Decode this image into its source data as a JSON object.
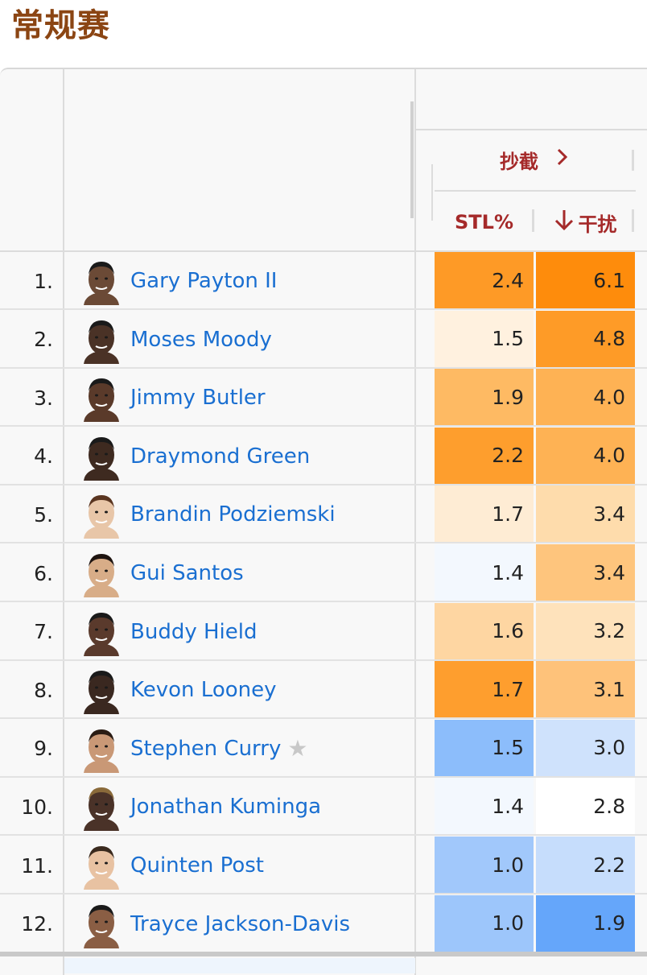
{
  "section_title": "常规赛",
  "header": {
    "group_label": "抄截",
    "group_chevron": "›",
    "col_stl": "STL%",
    "col_int_arrow": "↓",
    "col_int": "干扰"
  },
  "rows": [
    {
      "rank": "1.",
      "name": "Gary Payton II",
      "stl": "2.4",
      "stl_color": "#fe9a26",
      "int": "6.1",
      "int_color": "#fe8c0c",
      "star": ""
    },
    {
      "rank": "2.",
      "name": "Moses Moody",
      "stl": "1.5",
      "stl_color": "#fff1df",
      "int": "4.8",
      "int_color": "#fe9b27",
      "star": ""
    },
    {
      "rank": "3.",
      "name": "Jimmy Butler",
      "stl": "1.9",
      "stl_color": "#feba63",
      "int": "4.0",
      "int_color": "#feb254",
      "star": ""
    },
    {
      "rank": "4.",
      "name": "Draymond Green",
      "stl": "2.2",
      "stl_color": "#fe9e2d",
      "int": "4.0",
      "int_color": "#feb254",
      "star": ""
    },
    {
      "rank": "5.",
      "name": "Brandin Podziemski",
      "stl": "1.7",
      "stl_color": "#feecd4",
      "int": "3.4",
      "int_color": "#fedcac",
      "star": ""
    },
    {
      "rank": "6.",
      "name": "Gui Santos",
      "stl": "1.4",
      "stl_color": "#f3f8fe",
      "int": "3.4",
      "int_color": "#fec57d",
      "star": ""
    },
    {
      "rank": "7.",
      "name": "Buddy Hield",
      "stl": "1.6",
      "stl_color": "#fed6a2",
      "int": "3.2",
      "int_color": "#fee2bb",
      "star": ""
    },
    {
      "rank": "8.",
      "name": "Kevon Looney",
      "stl": "1.7",
      "stl_color": "#fe9e2e",
      "int": "3.1",
      "int_color": "#fec27a",
      "star": ""
    },
    {
      "rank": "9.",
      "name": "Stephen Curry",
      "stl": "1.5",
      "stl_color": "#8cbdfb",
      "int": "3.0",
      "int_color": "#cfe2fc",
      "star": "★"
    },
    {
      "rank": "10.",
      "name": "Jonathan Kuminga",
      "stl": "1.4",
      "stl_color": "#f3f8fe",
      "int": "2.8",
      "int_color": "#ffffff",
      "star": ""
    },
    {
      "rank": "11.",
      "name": "Quinten Post",
      "stl": "1.0",
      "stl_color": "#a1c8fb",
      "int": "2.2",
      "int_color": "#c6ddfc",
      "star": ""
    },
    {
      "rank": "12.",
      "name": "Trayce Jackson-Davis",
      "stl": "1.0",
      "stl_color": "#9dc6fb",
      "int": "1.9",
      "int_color": "#65a6fa",
      "star": ""
    }
  ]
}
